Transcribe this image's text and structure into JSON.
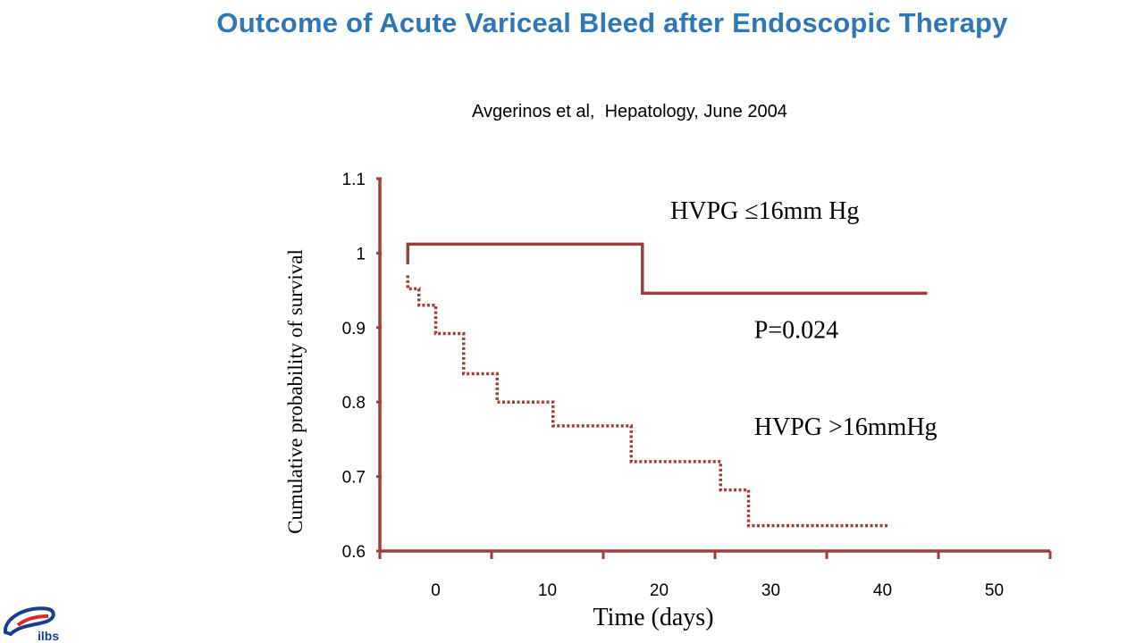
{
  "slide": {
    "title": "Outcome of Acute Variceal Bleed after Endoscopic Therapy",
    "citation": "Avgerinos et al,  Hepatology, June 2004",
    "logo_text": "ilbs"
  },
  "colors": {
    "title": "#2f77b5",
    "axis": "#a0403c",
    "series": "#a0403c",
    "logo": "#1a3f8f"
  },
  "chart_data": {
    "type": "line",
    "title": "",
    "xlabel": "Time (days)",
    "ylabel": "Cumulative probability of survival",
    "xlim": [
      -5,
      55
    ],
    "ylim": [
      0.6,
      1.1
    ],
    "x_ticks": [
      0,
      10,
      20,
      30,
      40,
      50
    ],
    "y_ticks": [
      0.6,
      0.7,
      0.8,
      0.9,
      1,
      1.1
    ],
    "x_tick_labels": [
      "0",
      "10",
      "20",
      "30",
      "40",
      "50"
    ],
    "y_tick_labels": [
      "0.6",
      "0.7",
      "0.8",
      "0.9",
      "1",
      "1.1"
    ],
    "grid": false,
    "series": [
      {
        "name": "HVPG  ≤16mm Hg",
        "style": "solid",
        "points": [
          [
            -2.5,
            0.985
          ],
          [
            -2.5,
            1.012
          ],
          [
            18.5,
            1.012
          ],
          [
            18.5,
            0.946
          ],
          [
            44,
            0.946
          ]
        ]
      },
      {
        "name": "HVPG   >16mmHg",
        "style": "dotted",
        "points": [
          [
            -2.5,
            0.97
          ],
          [
            -2.5,
            0.952
          ],
          [
            -1.5,
            0.952
          ],
          [
            -1.5,
            0.93
          ],
          [
            0,
            0.93
          ],
          [
            0,
            0.892
          ],
          [
            2.5,
            0.892
          ],
          [
            2.5,
            0.838
          ],
          [
            5.5,
            0.838
          ],
          [
            5.5,
            0.8
          ],
          [
            10.5,
            0.8
          ],
          [
            10.5,
            0.768
          ],
          [
            17.5,
            0.768
          ],
          [
            17.5,
            0.72
          ],
          [
            25.5,
            0.72
          ],
          [
            25.5,
            0.682
          ],
          [
            28,
            0.682
          ],
          [
            28,
            0.634
          ],
          [
            40.5,
            0.634
          ]
        ]
      }
    ],
    "annotations": [
      {
        "text": "HVPG  ≤16mm Hg",
        "x": 21,
        "y": 1.046
      },
      {
        "text": "P=0.024",
        "x": 28.5,
        "y": 0.886
      },
      {
        "text": "HVPG   >16mmHg",
        "x": 28.5,
        "y": 0.756
      }
    ]
  }
}
